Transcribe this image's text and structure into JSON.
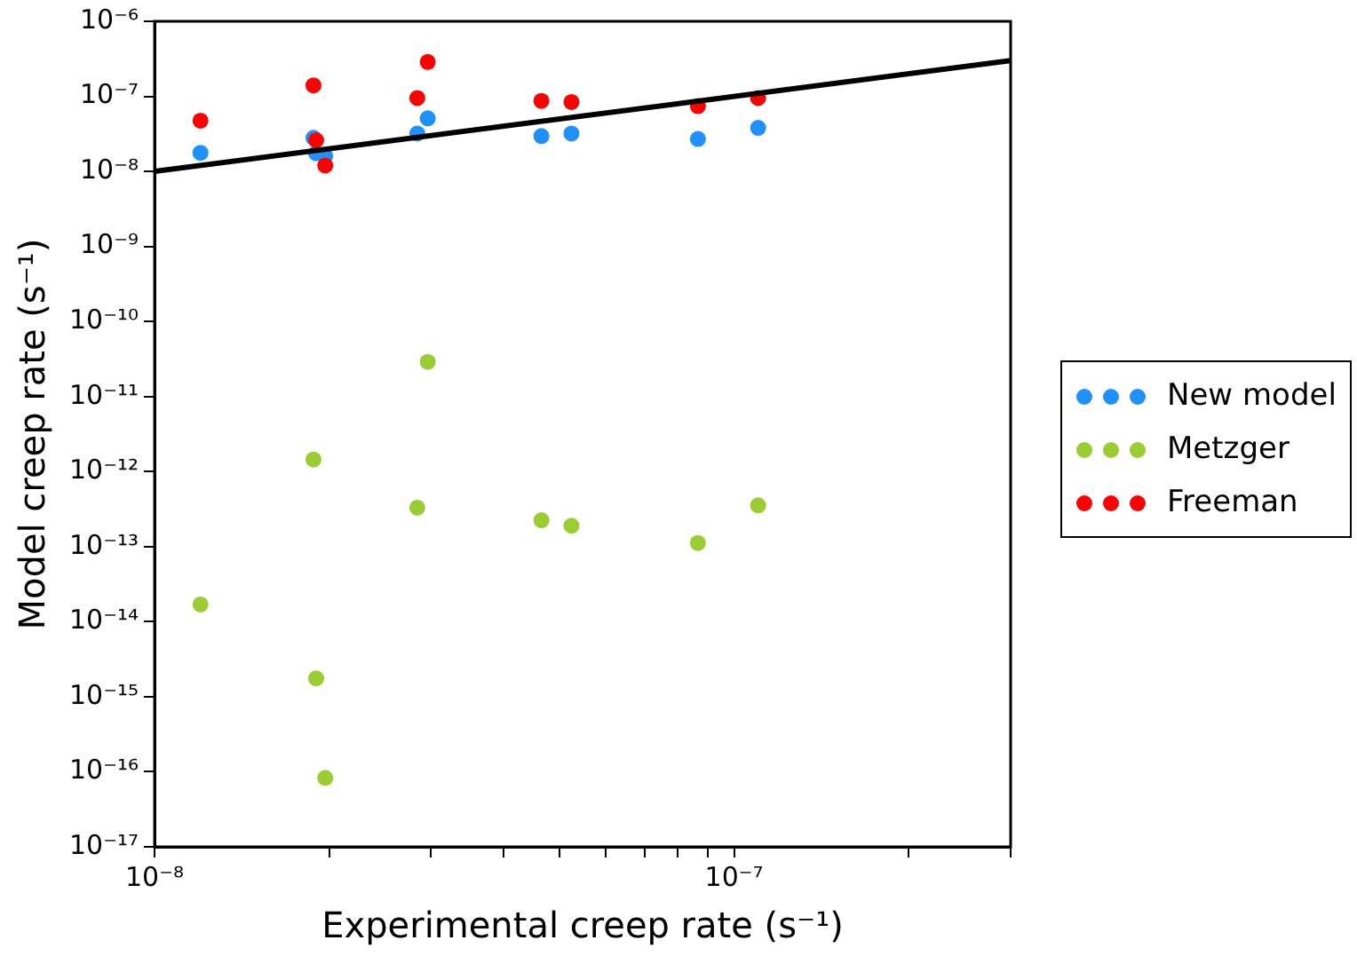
{
  "chart_data": {
    "type": "scatter",
    "xlabel": "Experimental creep rate (s⁻¹)",
    "ylabel": "Model creep rate (s⁻¹)",
    "x": [
      1.2e-08,
      1.88e-08,
      1.9e-08,
      1.97e-08,
      2.84e-08,
      2.96e-08,
      4.65e-08,
      5.24e-08,
      8.66e-08,
      1.1e-07
    ],
    "series": [
      {
        "name": "New model",
        "color": "#1e90ff",
        "values": [
          1.77e-08,
          2.8e-08,
          1.74e-08,
          1.6e-08,
          3.2e-08,
          5.1e-08,
          2.95e-08,
          3.2e-08,
          2.7e-08,
          3.8e-08
        ]
      },
      {
        "name": "Metzger",
        "color": "#9acd32",
        "values": [
          1.7e-14,
          1.45e-12,
          1.76e-15,
          8.3e-17,
          3.3e-13,
          2.9e-11,
          2.25e-13,
          1.9e-13,
          1.12e-13,
          3.55e-13
        ]
      },
      {
        "name": "Freeman",
        "color": "#ff0000",
        "values": [
          4.75e-08,
          1.4e-07,
          2.6e-08,
          1.2e-08,
          9.5e-08,
          2.87e-07,
          8.7e-08,
          8.4e-08,
          7.4e-08,
          9.5e-08
        ]
      },
      {
        "type": "line",
        "color": "#000000",
        "x": [
          1e-08,
          3e-07
        ],
        "values": [
          1e-08,
          3e-07
        ],
        "marker": "none"
      }
    ],
    "log": "xy",
    "marker": "circle",
    "line_style": "solid",
    "grid": false,
    "legend": "right",
    "xlim": [
      1e-08,
      3e-07
    ],
    "xticks": [
      {
        "value": 1e-08,
        "label": "10⁻⁸"
      },
      {
        "value": 2e-08,
        "label": null
      },
      {
        "value": 3e-08,
        "label": null
      },
      {
        "value": 4e-08,
        "label": null
      },
      {
        "value": 5e-08,
        "label": null
      },
      {
        "value": 6e-08,
        "label": null
      },
      {
        "value": 7e-08,
        "label": null
      },
      {
        "value": 8e-08,
        "label": null
      },
      {
        "value": 9e-08,
        "label": null
      },
      {
        "value": 1e-07,
        "label": "10⁻⁷"
      },
      {
        "value": 2e-07,
        "label": null
      },
      {
        "value": 3e-07,
        "label": null
      }
    ],
    "ylim": [
      1e-17,
      1e-06
    ],
    "yticks": [
      {
        "value": 1e-17,
        "label": "10⁻¹⁷"
      },
      {
        "value": 1e-16,
        "label": "10⁻¹⁶"
      },
      {
        "value": 1e-15,
        "label": "10⁻¹⁵"
      },
      {
        "value": 1e-14,
        "label": "10⁻¹⁴"
      },
      {
        "value": 1e-13,
        "label": "10⁻¹³"
      },
      {
        "value": 1e-12,
        "label": "10⁻¹²"
      },
      {
        "value": 1e-11,
        "label": "10⁻¹¹"
      },
      {
        "value": 1e-10,
        "label": "10⁻¹⁰"
      },
      {
        "value": 1e-09,
        "label": "10⁻⁹"
      },
      {
        "value": 1e-08,
        "label": "10⁻⁸"
      },
      {
        "value": 1e-07,
        "label": "10⁻⁷"
      },
      {
        "value": 1e-06,
        "label": "10⁻⁶"
      }
    ]
  }
}
